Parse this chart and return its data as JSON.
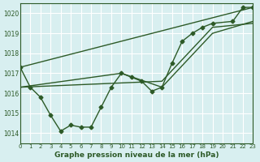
{
  "title": "Graphe pression niveau de la mer (hPa)",
  "bg_color": "#d8eff0",
  "grid_color": "#ffffff",
  "line_color": "#2d5a27",
  "xlim": [
    0,
    23
  ],
  "ylim": [
    1013.5,
    1020.5
  ],
  "yticks": [
    1014,
    1015,
    1016,
    1017,
    1018,
    1019,
    1020
  ],
  "xticks": [
    0,
    1,
    2,
    3,
    4,
    5,
    6,
    7,
    8,
    9,
    10,
    11,
    12,
    13,
    14,
    15,
    16,
    17,
    18,
    19,
    20,
    21,
    22,
    23
  ],
  "series1_x": [
    0,
    1,
    2,
    3,
    4,
    5,
    6,
    7,
    8,
    9,
    10,
    11,
    12,
    13,
    14,
    15,
    16,
    17,
    18,
    19,
    21,
    22,
    23
  ],
  "series1_y": [
    1017.3,
    1016.3,
    1015.8,
    1014.9,
    1014.1,
    1014.4,
    1014.3,
    1014.3,
    1015.3,
    1016.3,
    1017.0,
    1016.8,
    1016.6,
    1016.1,
    1016.3,
    1017.5,
    1018.6,
    1019.0,
    1019.3,
    1019.5,
    1019.6,
    1020.3,
    1020.3
  ],
  "series2_x": [
    0,
    23
  ],
  "series2_y": [
    1017.3,
    1020.3
  ],
  "series3_x": [
    0,
    10,
    14,
    19,
    23
  ],
  "series3_y": [
    1016.3,
    1017.0,
    1016.3,
    1019.0,
    1019.6
  ],
  "series4_x": [
    0,
    14,
    19,
    23
  ],
  "series4_y": [
    1016.3,
    1016.6,
    1019.3,
    1019.5
  ]
}
